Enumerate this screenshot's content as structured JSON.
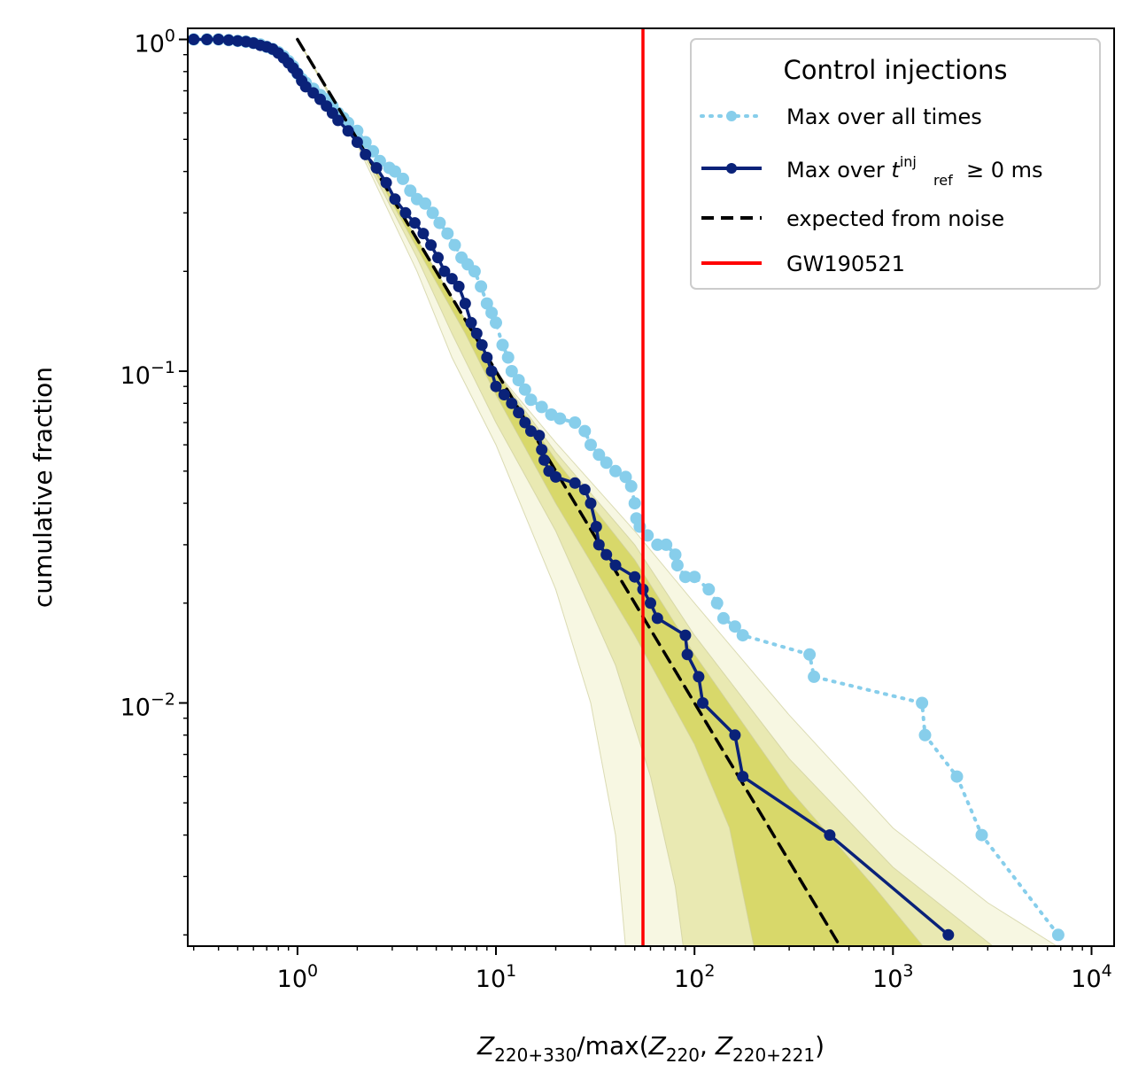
{
  "chart_data": {
    "type": "line",
    "xscale": "log",
    "yscale": "log",
    "xlim": [
      0.28,
      13000
    ],
    "ylim": [
      0.00185,
      1.08
    ],
    "xlabel": {
      "prefix": "Z",
      "sub1": "220+330",
      "mid": "/max(",
      "z2": "Z",
      "sub2": "220",
      "comma": ", ",
      "z3": "Z",
      "sub3": "220+221",
      "close": ")"
    },
    "ylabel": "cumulative fraction",
    "x_ticks": [
      {
        "base": "10",
        "exp": "0",
        "value": 1
      },
      {
        "base": "10",
        "exp": "1",
        "value": 10
      },
      {
        "base": "10",
        "exp": "2",
        "value": 100
      },
      {
        "base": "10",
        "exp": "3",
        "value": 1000
      },
      {
        "base": "10",
        "exp": "4",
        "value": 10000
      }
    ],
    "y_ticks": [
      {
        "base": "10",
        "exp": "0",
        "value": 1
      },
      {
        "base": "10",
        "exp": "−1",
        "value": 0.1
      },
      {
        "base": "10",
        "exp": "−2",
        "value": 0.01
      }
    ],
    "legend": {
      "title": "Control injections",
      "position": "upper right",
      "entries": [
        {
          "label": "Max over all times"
        },
        {
          "label_prefix": "Max over ",
          "t": "t",
          "sup": "inj",
          "sub": "ref",
          "label_suffix": "≥ 0 ms"
        },
        {
          "label": "expected from noise"
        },
        {
          "label": "GW190521"
        }
      ]
    },
    "colors": {
      "all_times": "#87ceeb",
      "tref": "#0a2279",
      "noise": "#000000",
      "event": "#ff0000",
      "band_inner": "#d8d86a",
      "band_mid": "#e9e9b2",
      "band_outer": "#f7f7e2"
    },
    "series": [
      {
        "id": "all_times",
        "style": "dotted",
        "points": [
          [
            0.3,
            1.0
          ],
          [
            0.35,
            1.0
          ],
          [
            0.4,
            1.0
          ],
          [
            0.45,
            0.995
          ],
          [
            0.5,
            0.99
          ],
          [
            0.55,
            0.985
          ],
          [
            0.6,
            0.975
          ],
          [
            0.65,
            0.965
          ],
          [
            0.7,
            0.95
          ],
          [
            0.75,
            0.935
          ],
          [
            0.8,
            0.915
          ],
          [
            0.85,
            0.89
          ],
          [
            0.9,
            0.86
          ],
          [
            0.95,
            0.83
          ],
          [
            1.0,
            0.79
          ],
          [
            1.05,
            0.76
          ],
          [
            1.1,
            0.74
          ],
          [
            1.2,
            0.71
          ],
          [
            1.3,
            0.68
          ],
          [
            1.4,
            0.66
          ],
          [
            1.5,
            0.63
          ],
          [
            1.6,
            0.6
          ],
          [
            1.7,
            0.58
          ],
          [
            1.8,
            0.56
          ],
          [
            2.0,
            0.53
          ],
          [
            2.2,
            0.49
          ],
          [
            2.4,
            0.46
          ],
          [
            2.6,
            0.43
          ],
          [
            2.9,
            0.41
          ],
          [
            3.1,
            0.4
          ],
          [
            3.4,
            0.38
          ],
          [
            3.7,
            0.35
          ],
          [
            4.0,
            0.33
          ],
          [
            4.4,
            0.32
          ],
          [
            4.8,
            0.3
          ],
          [
            5.2,
            0.28
          ],
          [
            5.7,
            0.26
          ],
          [
            6.2,
            0.24
          ],
          [
            6.7,
            0.22
          ],
          [
            7.2,
            0.21
          ],
          [
            7.8,
            0.2
          ],
          [
            8.4,
            0.18
          ],
          [
            9.0,
            0.16
          ],
          [
            9.5,
            0.15
          ],
          [
            10.0,
            0.14
          ],
          [
            10.8,
            0.12
          ],
          [
            11.5,
            0.11
          ],
          [
            12.0,
            0.1
          ],
          [
            13.0,
            0.094
          ],
          [
            14.0,
            0.088
          ],
          [
            15.0,
            0.082
          ],
          [
            17.0,
            0.078
          ],
          [
            19.0,
            0.074
          ],
          [
            21.0,
            0.072
          ],
          [
            25.0,
            0.07
          ],
          [
            28.0,
            0.066
          ],
          [
            30.0,
            0.06
          ],
          [
            33.0,
            0.056
          ],
          [
            36.0,
            0.053
          ],
          [
            40.0,
            0.05
          ],
          [
            45.0,
            0.048
          ],
          [
            48.0,
            0.045
          ],
          [
            50.0,
            0.04
          ],
          [
            51.0,
            0.036
          ],
          [
            53.0,
            0.034
          ],
          [
            58.0,
            0.032
          ],
          [
            65.0,
            0.03
          ],
          [
            72.0,
            0.03
          ],
          [
            80.0,
            0.028
          ],
          [
            82.0,
            0.026
          ],
          [
            90.0,
            0.024
          ],
          [
            100.0,
            0.024
          ],
          [
            118.0,
            0.022
          ],
          [
            130.0,
            0.02
          ],
          [
            140.0,
            0.018
          ],
          [
            160.0,
            0.017
          ],
          [
            175.0,
            0.016
          ],
          [
            380.0,
            0.014
          ],
          [
            400.0,
            0.012
          ],
          [
            1400.0,
            0.01
          ],
          [
            1450.0,
            0.008
          ],
          [
            2100.0,
            0.006
          ],
          [
            2800.0,
            0.004
          ],
          [
            6800.0,
            0.002
          ]
        ]
      },
      {
        "id": "tref",
        "style": "solid",
        "points": [
          [
            0.3,
            1.0
          ],
          [
            0.35,
            1.0
          ],
          [
            0.4,
            1.0
          ],
          [
            0.45,
            0.995
          ],
          [
            0.5,
            0.99
          ],
          [
            0.55,
            0.985
          ],
          [
            0.6,
            0.975
          ],
          [
            0.65,
            0.96
          ],
          [
            0.7,
            0.95
          ],
          [
            0.75,
            0.935
          ],
          [
            0.8,
            0.91
          ],
          [
            0.85,
            0.88
          ],
          [
            0.9,
            0.85
          ],
          [
            0.95,
            0.82
          ],
          [
            1.0,
            0.79
          ],
          [
            1.05,
            0.75
          ],
          [
            1.1,
            0.72
          ],
          [
            1.2,
            0.69
          ],
          [
            1.3,
            0.66
          ],
          [
            1.4,
            0.63
          ],
          [
            1.5,
            0.6
          ],
          [
            1.6,
            0.57
          ],
          [
            1.8,
            0.53
          ],
          [
            2.0,
            0.49
          ],
          [
            2.2,
            0.45
          ],
          [
            2.5,
            0.41
          ],
          [
            2.8,
            0.37
          ],
          [
            3.1,
            0.33
          ],
          [
            3.5,
            0.3
          ],
          [
            3.9,
            0.28
          ],
          [
            4.3,
            0.26
          ],
          [
            4.7,
            0.24
          ],
          [
            5.1,
            0.22
          ],
          [
            5.5,
            0.2
          ],
          [
            6.0,
            0.19
          ],
          [
            6.5,
            0.18
          ],
          [
            7.0,
            0.16
          ],
          [
            7.5,
            0.14
          ],
          [
            8.0,
            0.13
          ],
          [
            8.5,
            0.12
          ],
          [
            9.0,
            0.11
          ],
          [
            9.5,
            0.1
          ],
          [
            10.0,
            0.09
          ],
          [
            11.0,
            0.085
          ],
          [
            12.0,
            0.08
          ],
          [
            13.0,
            0.075
          ],
          [
            14.0,
            0.07
          ],
          [
            15.0,
            0.066
          ],
          [
            16.5,
            0.064
          ],
          [
            17.0,
            0.058
          ],
          [
            17.5,
            0.054
          ],
          [
            18.5,
            0.05
          ],
          [
            20.0,
            0.048
          ],
          [
            25.0,
            0.046
          ],
          [
            28.0,
            0.044
          ],
          [
            30.0,
            0.04
          ],
          [
            32.0,
            0.034
          ],
          [
            33.0,
            0.03
          ],
          [
            36.0,
            0.028
          ],
          [
            40.0,
            0.026
          ],
          [
            50.0,
            0.024
          ],
          [
            55.0,
            0.022
          ],
          [
            60.0,
            0.02
          ],
          [
            65.0,
            0.018
          ],
          [
            90.0,
            0.016
          ],
          [
            92.0,
            0.014
          ],
          [
            105.0,
            0.012
          ],
          [
            110.0,
            0.01
          ],
          [
            160.0,
            0.008
          ],
          [
            175.0,
            0.006
          ],
          [
            480.0,
            0.004
          ],
          [
            1900.0,
            0.002
          ]
        ]
      },
      {
        "id": "noise",
        "style": "dashed",
        "points": [
          [
            1.0,
            1.0
          ],
          [
            550.0,
            0.00182
          ]
        ]
      }
    ],
    "vline": {
      "id": "event",
      "x": 55
    },
    "bands": [
      {
        "level": "outer",
        "upper": [
          [
            1.0,
            1.0
          ],
          [
            2.0,
            0.5
          ],
          [
            5.0,
            0.2
          ],
          [
            10.0,
            0.1
          ],
          [
            20.0,
            0.061
          ],
          [
            50.0,
            0.033
          ],
          [
            100.0,
            0.02
          ],
          [
            300.0,
            0.0092
          ],
          [
            1000.0,
            0.0042
          ],
          [
            3000.0,
            0.0025
          ],
          [
            7000.0,
            0.00182
          ]
        ],
        "lower": [
          [
            1.0,
            1.0
          ],
          [
            2.0,
            0.48
          ],
          [
            4.0,
            0.2
          ],
          [
            6.0,
            0.11
          ],
          [
            10.0,
            0.06
          ],
          [
            20.0,
            0.022
          ],
          [
            30.0,
            0.01
          ],
          [
            40.0,
            0.004
          ],
          [
            45.0,
            0.00182
          ]
        ]
      },
      {
        "level": "mid",
        "upper": [
          [
            1.0,
            1.0
          ],
          [
            2.0,
            0.5
          ],
          [
            5.0,
            0.2
          ],
          [
            10.0,
            0.1
          ],
          [
            20.0,
            0.057
          ],
          [
            50.0,
            0.03
          ],
          [
            100.0,
            0.016
          ],
          [
            300.0,
            0.0068
          ],
          [
            1000.0,
            0.0032
          ],
          [
            3300.0,
            0.00182
          ]
        ],
        "lower": [
          [
            1.0,
            1.0
          ],
          [
            2.0,
            0.49
          ],
          [
            4.0,
            0.22
          ],
          [
            6.0,
            0.13
          ],
          [
            10.0,
            0.07
          ],
          [
            20.0,
            0.033
          ],
          [
            40.0,
            0.013
          ],
          [
            60.0,
            0.006
          ],
          [
            80.0,
            0.0028
          ],
          [
            88.0,
            0.00182
          ]
        ]
      },
      {
        "level": "inner",
        "upper": [
          [
            1.0,
            1.0
          ],
          [
            2.0,
            0.5
          ],
          [
            5.0,
            0.2
          ],
          [
            10.0,
            0.1
          ],
          [
            20.0,
            0.054
          ],
          [
            50.0,
            0.027
          ],
          [
            100.0,
            0.014
          ],
          [
            300.0,
            0.0055
          ],
          [
            800.0,
            0.0028
          ],
          [
            1450.0,
            0.00182
          ]
        ],
        "lower": [
          [
            1.0,
            1.0
          ],
          [
            2.0,
            0.5
          ],
          [
            4.0,
            0.235
          ],
          [
            7.0,
            0.13
          ],
          [
            10.0,
            0.085
          ],
          [
            20.0,
            0.04
          ],
          [
            50.0,
            0.016
          ],
          [
            100.0,
            0.0075
          ],
          [
            150.0,
            0.0042
          ],
          [
            200.0,
            0.00182
          ]
        ]
      }
    ]
  }
}
